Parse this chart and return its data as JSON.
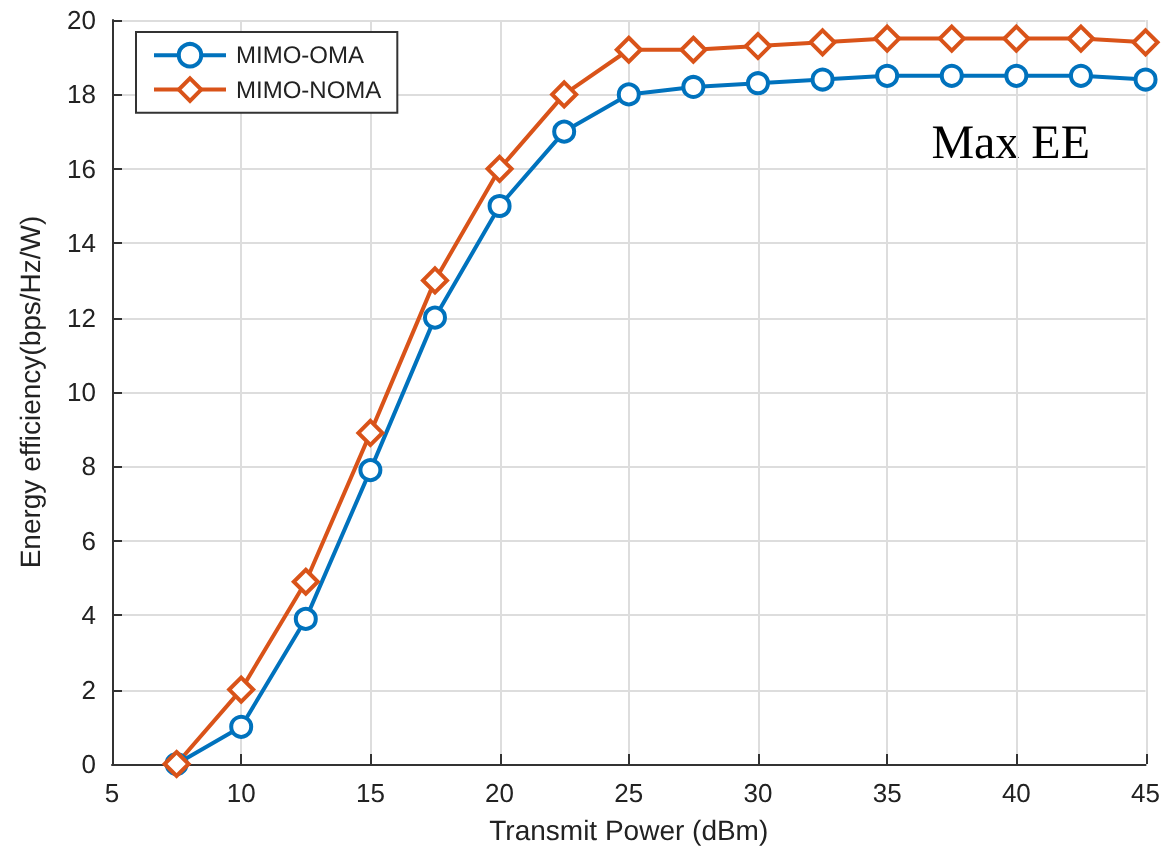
{
  "chart_data": {
    "type": "line",
    "xlabel": "Transmit Power (dBm)",
    "ylabel": "Energy efficiency(bps/Hz/W)",
    "annotations": [
      "Max EE"
    ],
    "x": [
      7.5,
      10,
      12.5,
      15,
      17.5,
      20,
      22.5,
      25,
      27.5,
      30,
      32.5,
      35,
      37.5,
      40,
      42.5,
      45
    ],
    "series": [
      {
        "name": "MIMO-OMA",
        "color": "#0072bd",
        "marker": "circle",
        "values": [
          0,
          1,
          3.9,
          7.9,
          12,
          15,
          17,
          18,
          18.2,
          18.3,
          18.4,
          18.5,
          18.5,
          18.5,
          18.5,
          18.4
        ]
      },
      {
        "name": "MIMO-NOMA",
        "color": "#d95319",
        "marker": "diamond",
        "values": [
          0,
          2,
          4.9,
          8.9,
          13,
          16,
          18,
          19.2,
          19.2,
          19.3,
          19.4,
          19.5,
          19.5,
          19.5,
          19.5,
          19.4
        ]
      }
    ],
    "xlim": [
      5,
      45
    ],
    "xticks": [
      5,
      10,
      15,
      20,
      25,
      30,
      35,
      40,
      45
    ],
    "ylim": [
      0,
      20
    ],
    "yticks": [
      0,
      2,
      4,
      6,
      8,
      10,
      12,
      14,
      16,
      18,
      20
    ],
    "grid": true,
    "legend": "top left",
    "line_style": "solid"
  }
}
